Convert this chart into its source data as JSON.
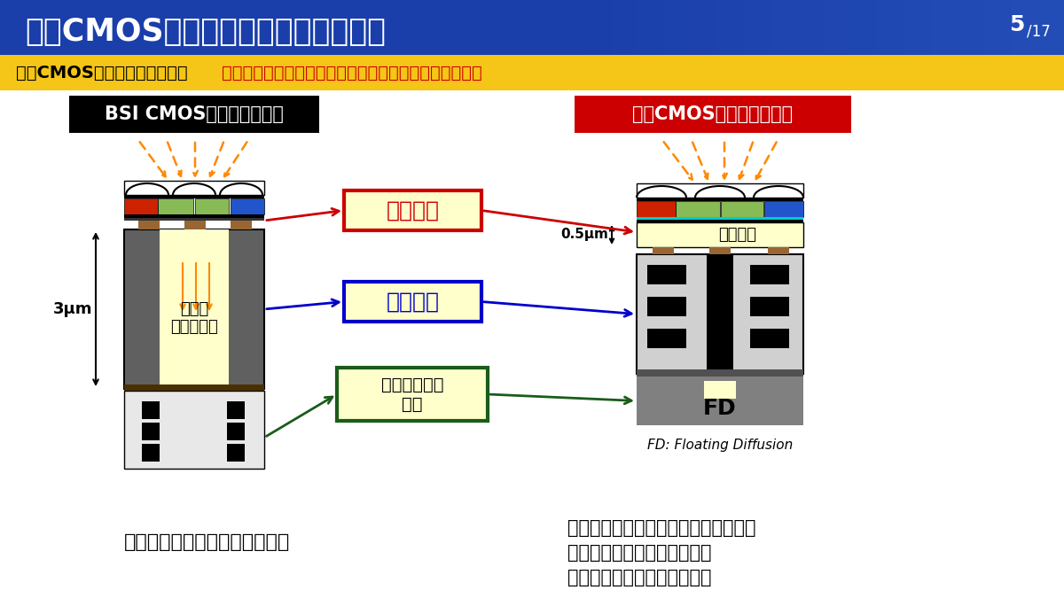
{
  "title": "有機CMOSイメージセンサの画素構造",
  "slide_num": "5",
  "slide_total": "17",
  "subtitle_normal": "有機CMOSイメージセンサは、",
  "subtitle_highlight": "光電変換部と電荷蓄積・読出し回路部を独立に設計可能",
  "bsi_label": "BSI CMOSイメージセンサ",
  "organic_label": "有機CMOSイメージセンサ",
  "label_kodenhenkan": "光電変換",
  "label_denka": "電荷蓄積",
  "label_koki": "高機能回路の\n追加",
  "label_photo": "フォト\nダイオード",
  "label_fd": "FD",
  "label_yukimaku": "有機薄膜",
  "label_3um": "3μm",
  "label_05um": "0.5μm",
  "label_fd_note": "FD: Floating Diffusion",
  "bsi_note": "感度特性や機能実装に制限あり",
  "organic_note1": "・シリコンの物性に依らない感度特性",
  "organic_note2": "・広い面積を有効利用した、",
  "organic_note3": "　性能向上や機能実装が可能",
  "header_bg": "#1a3eaa",
  "header_bg2": "#3366cc",
  "subtitle_bg": "#f5c518",
  "white_bg": "#ffffff",
  "light_gray": "#d0d0d0",
  "dark_gray": "#606060",
  "very_light_gray": "#e8e8e8",
  "black": "#000000",
  "yellow_light": "#ffffcc",
  "filter_red": "#cc2200",
  "filter_green": "#88bb55",
  "filter_blue": "#2255cc",
  "red_color": "#cc0000",
  "blue_color": "#0000cc",
  "orange_color": "#ff8800",
  "brown_color": "#996633",
  "dark_brown": "#4a3000",
  "kodenhenkan_border": "#cc0000",
  "denka_border": "#0000cc",
  "koki_border": "#1a5c1a",
  "organic_box_bg": "#cc0000",
  "organic_film_color": "#ffffcc",
  "fd_gray": "#808080",
  "fd_dark_gray": "#505050",
  "cyan_line": "#00cccc"
}
